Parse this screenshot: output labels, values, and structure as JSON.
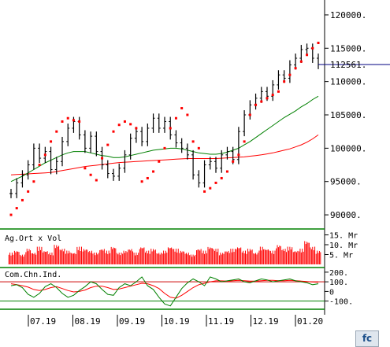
{
  "chart_data": [
    {
      "type": "line",
      "panel": "price",
      "ylim": [
        88000,
        122000
      ],
      "y_ticks": [
        "120000.",
        "115000.",
        "110000.",
        "105000.",
        "100000.",
        "95000.",
        "90000."
      ],
      "last_price_label": "112561.",
      "last_price": 112561,
      "x_tick_labels": [
        "07.19",
        "08.19",
        "09.19",
        "10.19",
        "11.19",
        "12.19",
        "01.20"
      ],
      "price_close": [
        93200,
        94800,
        96000,
        97500,
        100000,
        98500,
        99500,
        96800,
        98000,
        101000,
        103000,
        104000,
        102000,
        100000,
        101800,
        99500,
        97500,
        96200,
        95800,
        97000,
        99000,
        101500,
        102500,
        101000,
        103000,
        104500,
        103000,
        104000,
        102000,
        100800,
        100000,
        99000,
        96000,
        94800,
        97500,
        98000,
        97000,
        99000,
        99500,
        98300,
        102500,
        105000,
        106500,
        107500,
        108500,
        107800,
        109500,
        111000,
        110500,
        112500,
        113500,
        114800,
        115000,
        113500,
        112561
      ],
      "parabolic_sar": [
        90000,
        91000,
        92200,
        93500,
        95000,
        97500,
        99000,
        101000,
        102500,
        104000,
        104500,
        104200,
        104000,
        97000,
        96000,
        95200,
        98500,
        100500,
        102500,
        103500,
        104000,
        103600,
        103000,
        95000,
        95500,
        96500,
        98000,
        100000,
        103000,
        104500,
        106000,
        105000,
        101000,
        100000,
        93500,
        94000,
        94800,
        95500,
        96500,
        98000,
        99000,
        101000,
        105000,
        106500,
        107000,
        107500,
        108000,
        108500,
        110000,
        111000,
        112000,
        113000,
        114000,
        115000,
        115800
      ],
      "ma_green": [
        95000,
        95400,
        95800,
        96300,
        96800,
        97300,
        97800,
        98200,
        98600,
        99000,
        99300,
        99500,
        99500,
        99500,
        99300,
        99100,
        98900,
        98800,
        98600,
        98600,
        98700,
        98900,
        99100,
        99300,
        99500,
        99700,
        99800,
        99900,
        100000,
        100000,
        99900,
        99700,
        99500,
        99300,
        99200,
        99100,
        99100,
        99200,
        99400,
        99700,
        100000,
        100500,
        101000,
        101600,
        102200,
        102800,
        103400,
        104000,
        104600,
        105100,
        105600,
        106200,
        106700,
        107300,
        107800
      ],
      "ma_red": [
        96000,
        96050,
        96100,
        96150,
        96200,
        96250,
        96300,
        96350,
        96500,
        96650,
        96800,
        96950,
        97100,
        97250,
        97350,
        97450,
        97550,
        97650,
        97750,
        97850,
        97900,
        97950,
        98000,
        98050,
        98100,
        98150,
        98200,
        98250,
        98300,
        98350,
        98400,
        98450,
        98450,
        98450,
        98450,
        98450,
        98450,
        98500,
        98550,
        98600,
        98650,
        98700,
        98800,
        98900,
        99000,
        99150,
        99300,
        99500,
        99700,
        99900,
        100200,
        100500,
        100900,
        101400,
        102000
      ]
    },
    {
      "type": "bar",
      "panel": "volume",
      "title": "Ag.Ort x Vol",
      "y_ticks": [
        "15. Mr",
        "10. Mr",
        "5. Mr"
      ],
      "ylim": [
        0,
        16
      ],
      "values": [
        6,
        7,
        5,
        8,
        6,
        9,
        7,
        6,
        10,
        8,
        7,
        6,
        9,
        8,
        7,
        6,
        8,
        7,
        9,
        6,
        7,
        8,
        6,
        9,
        7,
        8,
        6,
        7,
        9,
        8,
        7,
        6,
        5,
        8,
        7,
        9,
        8,
        6,
        7,
        8,
        9,
        7,
        8,
        6,
        9,
        8,
        7,
        10,
        8,
        9,
        7,
        8,
        12,
        9,
        7
      ]
    },
    {
      "type": "line",
      "panel": "cci",
      "title": "Com.Chn.Ind.",
      "y_ticks": [
        "200.",
        "100.",
        "0",
        "-100."
      ],
      "ylim": [
        -160,
        240
      ],
      "levels": [
        100,
        -100
      ],
      "cci_green": [
        60,
        70,
        40,
        -30,
        -60,
        -20,
        50,
        80,
        40,
        -20,
        -60,
        -40,
        10,
        50,
        100,
        80,
        20,
        -30,
        -40,
        40,
        80,
        60,
        100,
        150,
        60,
        20,
        -60,
        -130,
        -150,
        -60,
        30,
        90,
        130,
        100,
        60,
        150,
        130,
        100,
        110,
        120,
        130,
        100,
        90,
        110,
        130,
        120,
        100,
        110,
        120,
        130,
        110,
        100,
        90,
        70,
        80
      ],
      "cci_red": [
        80,
        70,
        60,
        45,
        20,
        10,
        20,
        40,
        50,
        30,
        10,
        -5,
        0,
        15,
        40,
        55,
        55,
        40,
        20,
        25,
        40,
        55,
        70,
        85,
        80,
        60,
        30,
        -20,
        -60,
        -70,
        -40,
        0,
        40,
        70,
        85,
        100,
        110,
        110,
        108,
        112,
        115,
        112,
        108,
        108,
        112,
        115,
        115,
        112,
        112,
        115,
        112,
        108,
        104,
        98,
        95
      ]
    },
    {
      "color_price": "#000000",
      "color_sar": "#ff0000",
      "color_ma_green": "#008000",
      "color_ma_red": "#ff0000",
      "color_volume": "#ff0000",
      "color_last_price": "#000080"
    }
  ],
  "toolbar": {
    "logo_button_label": "fc"
  }
}
